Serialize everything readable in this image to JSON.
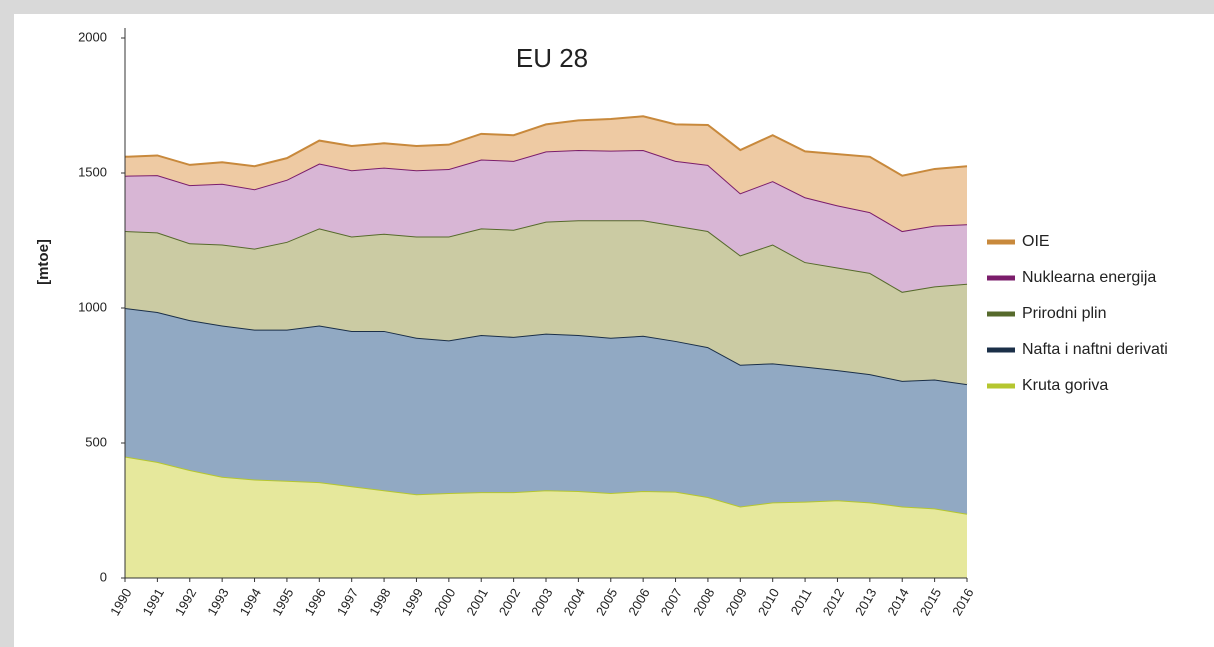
{
  "chart_data": {
    "type": "stacked_area",
    "title": "EU 28",
    "y_label": "[mtoe]",
    "categories": [
      "1990",
      "1991",
      "1992",
      "1993",
      "1994",
      "1995",
      "1996",
      "1997",
      "1998",
      "1999",
      "2000",
      "2001",
      "2002",
      "2003",
      "2004",
      "2005",
      "2006",
      "2007",
      "2008",
      "2009",
      "2010",
      "2011",
      "2012",
      "2013",
      "2014",
      "2015",
      "2016"
    ],
    "series": [
      {
        "name": "Kruta goriva",
        "color": "#e6e89c",
        "line_color": "#b5c62f",
        "values": [
          450,
          430,
          400,
          375,
          365,
          360,
          355,
          340,
          325,
          310,
          315,
          318,
          318,
          325,
          322,
          315,
          322,
          320,
          300,
          265,
          280,
          283,
          288,
          280,
          265,
          258,
          238
        ]
      },
      {
        "name": "Nafta i naftni derivati",
        "color": "#91a9c3",
        "line_color": "#1b2f48",
        "values": [
          550,
          555,
          555,
          560,
          555,
          560,
          580,
          575,
          590,
          580,
          565,
          582,
          575,
          580,
          578,
          575,
          575,
          558,
          555,
          525,
          515,
          500,
          482,
          475,
          465,
          477,
          480
        ]
      },
      {
        "name": "Prirodni plin",
        "color": "#cbcba3",
        "line_color": "#566a2c",
        "values": [
          285,
          295,
          285,
          300,
          300,
          325,
          360,
          350,
          360,
          375,
          385,
          395,
          397,
          415,
          425,
          435,
          428,
          427,
          430,
          405,
          440,
          387,
          380,
          375,
          330,
          345,
          372
        ]
      },
      {
        "name": "Nuklearna energija",
        "color": "#d8b6d5",
        "line_color": "#7b1d6b",
        "values": [
          205,
          212,
          215,
          225,
          220,
          230,
          240,
          245,
          245,
          245,
          250,
          255,
          255,
          260,
          260,
          258,
          260,
          240,
          245,
          230,
          235,
          240,
          230,
          225,
          225,
          225,
          220
        ]
      },
      {
        "name": "OIE",
        "color": "#eecaa3",
        "line_color": "#c8893c",
        "values": [
          70,
          73,
          75,
          80,
          85,
          80,
          85,
          90,
          90,
          90,
          90,
          95,
          95,
          100,
          110,
          117,
          125,
          135,
          148,
          160,
          170,
          170,
          190,
          205,
          205,
          210,
          215
        ]
      }
    ],
    "ylim": [
      0,
      2000
    ],
    "yticks": [
      0,
      500,
      1000,
      1500,
      2000
    ],
    "grid": false,
    "legend": "right"
  }
}
